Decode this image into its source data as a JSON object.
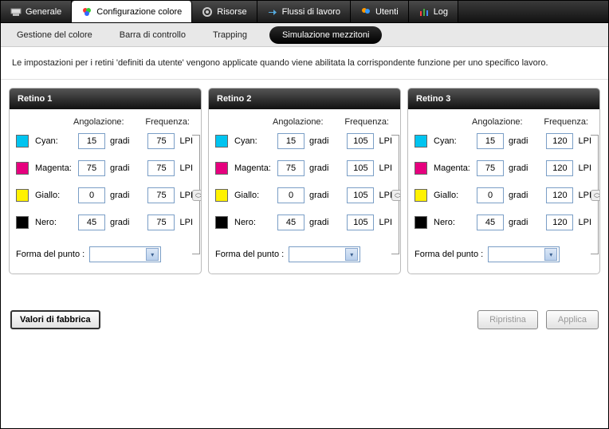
{
  "tabs": {
    "generale": "Generale",
    "colore": "Configurazione colore",
    "risorse": "Risorse",
    "flussi": "Flussi di lavoro",
    "utenti": "Utenti",
    "log": "Log"
  },
  "subtabs": {
    "gestione": "Gestione del colore",
    "barra": "Barra di controllo",
    "trapping": "Trapping",
    "mezzitoni": "Simulazione mezzitoni"
  },
  "info_text": "Le impostazioni per i retini 'definiti da utente'  vengono applicate quando viene abilitata la corrispondente funzione per uno specifico lavoro.",
  "headers": {
    "ang": "Angolazione:",
    "freq": "Frequenza:"
  },
  "units": {
    "deg": "gradi",
    "lpi": "LPI"
  },
  "dot_shape_label": "Forma del punto :",
  "colors": {
    "cyan": {
      "label": "Cyan:",
      "hex": "#00c4f0"
    },
    "magenta": {
      "label": "Magenta:",
      "hex": "#e6007e"
    },
    "giallo": {
      "label": "Giallo:",
      "hex": "#fff200"
    },
    "nero": {
      "label": "Nero:",
      "hex": "#000000"
    }
  },
  "panels": [
    {
      "title": "Retino 1",
      "rows": {
        "cyan": {
          "ang": "15",
          "freq": "75"
        },
        "magenta": {
          "ang": "75",
          "freq": "75"
        },
        "giallo": {
          "ang": "0",
          "freq": "75"
        },
        "nero": {
          "ang": "45",
          "freq": "75"
        }
      }
    },
    {
      "title": "Retino 2",
      "rows": {
        "cyan": {
          "ang": "15",
          "freq": "105"
        },
        "magenta": {
          "ang": "75",
          "freq": "105"
        },
        "giallo": {
          "ang": "0",
          "freq": "105"
        },
        "nero": {
          "ang": "45",
          "freq": "105"
        }
      }
    },
    {
      "title": "Retino 3",
      "rows": {
        "cyan": {
          "ang": "15",
          "freq": "120"
        },
        "magenta": {
          "ang": "75",
          "freq": "120"
        },
        "giallo": {
          "ang": "0",
          "freq": "120"
        },
        "nero": {
          "ang": "45",
          "freq": "120"
        }
      }
    }
  ],
  "buttons": {
    "factory": "Valori di fabbrica",
    "reset": "Ripristina",
    "apply": "Applica"
  },
  "icons": {
    "generale_svg": "<svg width='14' height='14'><rect x='1' y='3' width='12' height='6' fill='#ddd' stroke='#888'/><rect x='3' y='9' width='8' height='3' fill='#bbb'/></svg>",
    "colore_svg": "<svg width='14' height='14'><circle cx='5' cy='5' r='3' fill='#f33'/><circle cx='9' cy='5' r='3' fill='#3c3'/><circle cx='7' cy='9' r='3' fill='#36f'/></svg>",
    "risorse_svg": "<svg width='14' height='14'><circle cx='7' cy='7' r='5' fill='none' stroke='#ccc' stroke-width='2'/><circle cx='7' cy='7' r='2' fill='#ccc'/></svg>",
    "flussi_svg": "<svg width='14' height='14'><path d='M2 7 L8 7 L8 4 L12 7.5 L8 11 L8 8 L2 8 Z' fill='#5ad'/></svg>",
    "utenti_svg": "<svg width='14' height='14'><circle cx='5' cy='5' r='3' fill='#f90'/><circle cx='9' cy='6' r='3' fill='#39f'/></svg>",
    "log_svg": "<svg width='14' height='14'><rect x='2' y='6' width='2' height='6' fill='#f44'/><rect x='6' y='3' width='2' height='9' fill='#4a4'/><rect x='10' y='5' width='2' height='7' fill='#48f'/></svg>"
  }
}
